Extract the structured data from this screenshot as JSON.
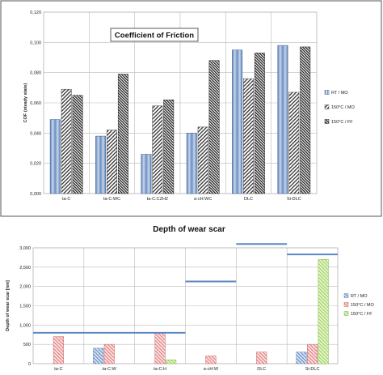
{
  "chart_data": [
    {
      "type": "bar",
      "title": "Coefficient of Friction",
      "xlabel": "",
      "ylabel": "COF (steady state)",
      "ylim": [
        0,
        0.12
      ],
      "yticks": [
        "0,000",
        "0,020",
        "0,040",
        "0,060",
        "0,080",
        "0,100",
        "0,120"
      ],
      "categories": [
        "ta-C",
        "ta-C:WC",
        "ta-C:CZH2",
        "a-cH:WC",
        "DLC",
        "Si-DLC"
      ],
      "series": [
        {
          "name": "RT / MO",
          "values": [
            0.049,
            0.038,
            0.026,
            0.04,
            0.095,
            0.098
          ]
        },
        {
          "name": "150°C / MO",
          "values": [
            0.069,
            0.042,
            0.058,
            0.044,
            0.076,
            0.067
          ]
        },
        {
          "name": "150°C / FF",
          "values": [
            0.065,
            0.079,
            0.062,
            0.088,
            0.093,
            0.097
          ]
        }
      ],
      "grid": true,
      "legend": "right"
    },
    {
      "type": "bar",
      "title": "Depth of wear scar",
      "xlabel": "",
      "ylabel": "Depth of wear scar [nm]",
      "ylim": [
        0,
        3000
      ],
      "yticks": [
        "0",
        "500",
        "1,000",
        "1,500",
        "2,000",
        "2,500",
        "3,000"
      ],
      "categories": [
        "ta-C",
        "ta-C:W",
        "ta-C:H",
        "a-cH:W",
        "DLC",
        "Si-DLC"
      ],
      "series": [
        {
          "name": "RT / MO",
          "values": [
            0,
            400,
            0,
            0,
            0,
            300
          ]
        },
        {
          "name": "150°C / MO",
          "values": [
            700,
            500,
            800,
            200,
            300,
            500
          ]
        },
        {
          "name": "150°C / FF",
          "values": [
            0,
            0,
            100,
            0,
            0,
            2700
          ]
        }
      ],
      "reference_lines": [
        {
          "from": 0,
          "to": 3,
          "value": 800
        },
        {
          "from": 3,
          "to": 4,
          "value": 2130
        },
        {
          "from": 4,
          "to": 5,
          "value": 3100
        },
        {
          "from": 5,
          "to": 6,
          "value": 2830
        }
      ],
      "grid": true,
      "legend": "right"
    }
  ]
}
